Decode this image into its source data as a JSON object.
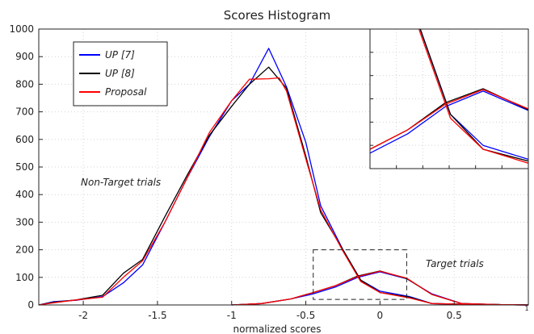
{
  "chart_data": {
    "type": "line",
    "title": "Scores Histogram",
    "xlabel": "normalized scores",
    "ylabel": "",
    "xlim": [
      -2.3,
      1.0
    ],
    "ylim": [
      0,
      1000
    ],
    "x_ticks": [
      -2,
      -1.5,
      -1,
      -0.5,
      0,
      0.5
    ],
    "x_tick_labels": [
      "-2",
      "-1.5",
      "-1",
      "-0.5",
      "0",
      "0.5"
    ],
    "x_edge_label": "1",
    "y_ticks": [
      0,
      100,
      200,
      300,
      400,
      500,
      600,
      700,
      800,
      900,
      1000
    ],
    "grid": true,
    "legend_position": "top-left",
    "series": [
      {
        "name": "UP [7]",
        "color": "#0000ff",
        "groups": [
          [
            [
              -2.3,
              0
            ],
            [
              -2.2,
              12
            ],
            [
              -2.05,
              17
            ],
            [
              -1.87,
              30
            ],
            [
              -1.73,
              80
            ],
            [
              -1.6,
              145
            ],
            [
              -1.45,
              300
            ],
            [
              -1.3,
              460
            ],
            [
              -1.15,
              610
            ],
            [
              -1.0,
              740
            ],
            [
              -0.88,
              800
            ],
            [
              -0.75,
              930
            ],
            [
              -0.63,
              790
            ],
            [
              -0.5,
              590
            ],
            [
              -0.4,
              360
            ],
            [
              -0.25,
              200
            ],
            [
              -0.13,
              90
            ],
            [
              0.0,
              50
            ],
            [
              0.2,
              30
            ],
            [
              0.35,
              5
            ],
            [
              0.55,
              3
            ],
            [
              0.82,
              1
            ],
            [
              1.0,
              0
            ]
          ],
          [
            [
              -1.0,
              0
            ],
            [
              -0.8,
              5
            ],
            [
              -0.6,
              22
            ],
            [
              -0.45,
              40
            ],
            [
              -0.3,
              65
            ],
            [
              -0.15,
              100
            ],
            [
              0.0,
              120
            ],
            [
              0.18,
              95
            ],
            [
              0.35,
              40
            ],
            [
              0.55,
              5
            ],
            [
              0.82,
              1
            ],
            [
              1.0,
              0
            ]
          ]
        ]
      },
      {
        "name": "UP [8]",
        "color": "#000000",
        "groups": [
          [
            [
              -2.3,
              0
            ],
            [
              -2.2,
              10
            ],
            [
              -2.05,
              18
            ],
            [
              -1.87,
              35
            ],
            [
              -1.73,
              115
            ],
            [
              -1.6,
              165
            ],
            [
              -1.45,
              320
            ],
            [
              -1.3,
              470
            ],
            [
              -1.15,
              615
            ],
            [
              -1.0,
              720
            ],
            [
              -0.88,
              800
            ],
            [
              -0.75,
              862
            ],
            [
              -0.63,
              785
            ],
            [
              -0.5,
              540
            ],
            [
              -0.4,
              335
            ],
            [
              -0.25,
              200
            ],
            [
              -0.13,
              90
            ],
            [
              0.0,
              45
            ],
            [
              0.2,
              28
            ],
            [
              0.35,
              5
            ],
            [
              0.55,
              3
            ],
            [
              0.82,
              1
            ],
            [
              1.0,
              0
            ]
          ],
          [
            [
              -1.0,
              0
            ],
            [
              -0.8,
              5
            ],
            [
              -0.6,
              22
            ],
            [
              -0.45,
              45
            ],
            [
              -0.3,
              70
            ],
            [
              -0.15,
              105
            ],
            [
              0.0,
              123
            ],
            [
              0.18,
              96
            ],
            [
              0.35,
              38
            ],
            [
              0.55,
              5
            ],
            [
              0.82,
              1
            ],
            [
              1.0,
              0
            ]
          ]
        ]
      },
      {
        "name": "Proposal",
        "color": "#ff0000",
        "groups": [
          [
            [
              -2.3,
              0
            ],
            [
              -2.2,
              8
            ],
            [
              -2.05,
              18
            ],
            [
              -1.87,
              28
            ],
            [
              -1.73,
              100
            ],
            [
              -1.6,
              160
            ],
            [
              -1.45,
              300
            ],
            [
              -1.3,
              460
            ],
            [
              -1.15,
              625
            ],
            [
              -1.0,
              740
            ],
            [
              -0.88,
              818
            ],
            [
              -0.75,
              820
            ],
            [
              -0.68,
              823
            ],
            [
              -0.63,
              775
            ],
            [
              -0.5,
              530
            ],
            [
              -0.4,
              345
            ],
            [
              -0.25,
              195
            ],
            [
              -0.13,
              85
            ],
            [
              0.0,
              45
            ],
            [
              0.2,
              25
            ],
            [
              0.35,
              5
            ],
            [
              0.55,
              3
            ],
            [
              0.82,
              1
            ],
            [
              1.0,
              0
            ]
          ],
          [
            [
              -1.0,
              0
            ],
            [
              -0.8,
              5
            ],
            [
              -0.6,
              22
            ],
            [
              -0.45,
              45
            ],
            [
              -0.3,
              70
            ],
            [
              -0.15,
              103
            ],
            [
              0.0,
              122
            ],
            [
              0.18,
              97
            ],
            [
              0.35,
              38
            ],
            [
              0.55,
              5
            ],
            [
              0.82,
              1
            ],
            [
              1.0,
              0
            ]
          ]
        ]
      }
    ],
    "annotations": {
      "non_target": "Non-Target trials",
      "target": "Target trials"
    },
    "zoom_box": {
      "x": [
        -0.45,
        0.18
      ],
      "y": [
        20,
        200
      ]
    },
    "inset": {
      "type": "line",
      "xlim": [
        -0.45,
        0.18
      ],
      "ylim": [
        20,
        200
      ],
      "grid": true,
      "tick_labels": "none"
    }
  }
}
